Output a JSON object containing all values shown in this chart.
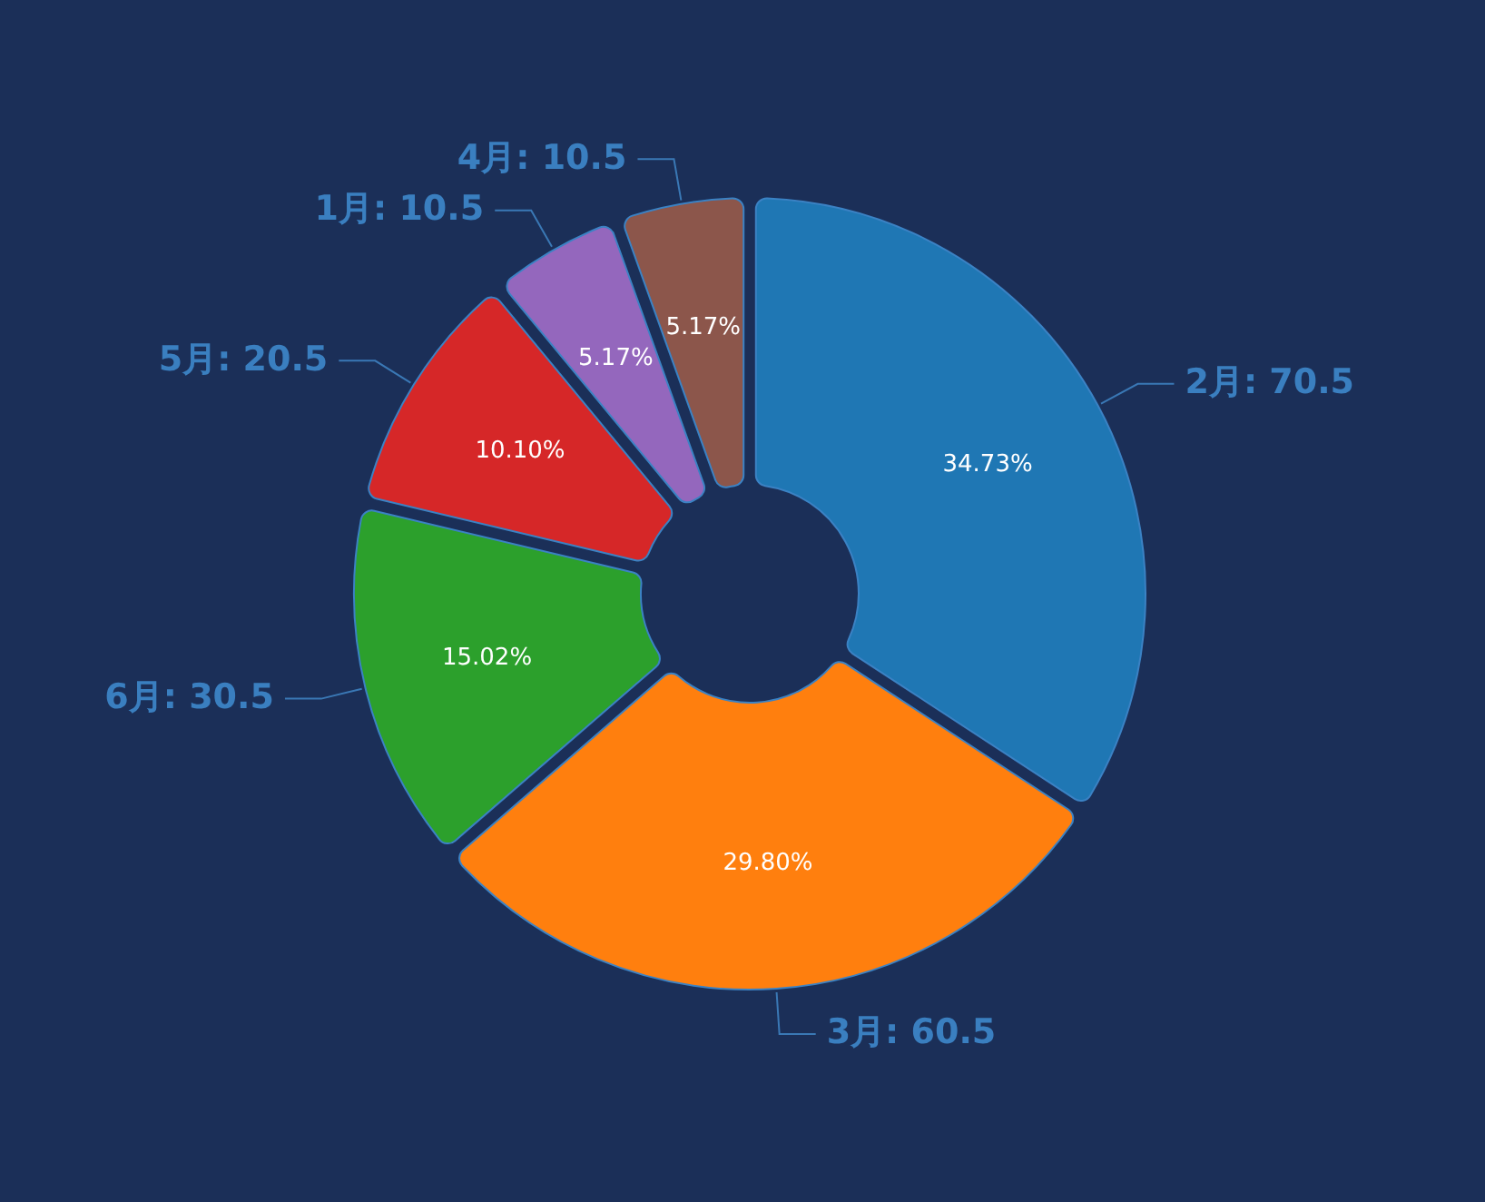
{
  "chart_data": {
    "type": "donut",
    "categories": [
      "2月: 70.5",
      "3月: 60.5",
      "6月: 30.5",
      "5月: 20.5",
      "1月: 10.5",
      "4月: 10.5"
    ],
    "values": [
      34.73,
      29.8,
      15.02,
      10.1,
      5.17,
      5.17
    ],
    "colors": [
      "#1f77b4",
      "#ff7f0e",
      "#2ca02c",
      "#d62728",
      "#9467bd",
      "#8c564b"
    ],
    "value_labels": [
      "34.73%",
      "29.80%",
      "15.02%",
      "10.10%",
      "5.17%",
      "5.17%"
    ]
  }
}
